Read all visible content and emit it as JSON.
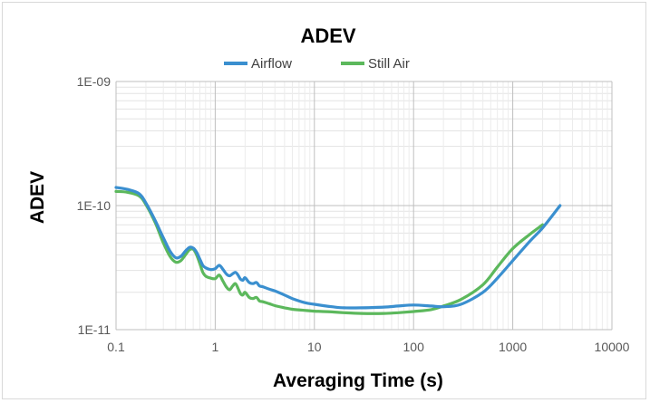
{
  "chart_data": {
    "type": "line",
    "title": "ADEV",
    "xlabel": "Averaging Time (s)",
    "ylabel": "ADEV",
    "xscale": "log",
    "yscale": "log",
    "xlim": [
      0.1,
      10000
    ],
    "ylim": [
      1e-11,
      1e-09
    ],
    "x_ticks": [
      "0.1",
      "1",
      "10",
      "100",
      "1000",
      "10000"
    ],
    "y_ticks": [
      "1E-11",
      "1E-10",
      "1E-09"
    ],
    "grid": true,
    "legend": "top-center",
    "series": [
      {
        "name": "Airflow",
        "color": "#3a8fcf",
        "x": [
          0.1,
          0.13,
          0.17,
          0.2,
          0.25,
          0.3,
          0.35,
          0.4,
          0.45,
          0.5,
          0.55,
          0.6,
          0.65,
          0.7,
          0.75,
          0.8,
          0.9,
          1.0,
          1.1,
          1.2,
          1.3,
          1.4,
          1.5,
          1.6,
          1.7,
          1.8,
          1.9,
          2.0,
          2.2,
          2.4,
          2.6,
          2.8,
          3.0,
          3.5,
          4.0,
          5,
          6,
          8,
          10,
          15,
          20,
          30,
          50,
          70,
          100,
          150,
          200,
          300,
          500,
          700,
          1000,
          1500,
          2000,
          3000
        ],
        "y": [
          1.4e-10,
          1.35e-10,
          1.25e-10,
          1.05e-10,
          7.5e-11,
          5.5e-11,
          4.3e-11,
          3.8e-11,
          3.9e-11,
          4.3e-11,
          4.6e-11,
          4.55e-11,
          4.2e-11,
          3.7e-11,
          3.3e-11,
          3.15e-11,
          3.05e-11,
          3.1e-11,
          3.3e-11,
          3.05e-11,
          2.8e-11,
          2.72e-11,
          2.82e-11,
          2.9e-11,
          2.75e-11,
          2.55e-11,
          2.5e-11,
          2.62e-11,
          2.4e-11,
          2.35e-11,
          2.4e-11,
          2.25e-11,
          2.22e-11,
          2.12e-11,
          2.05e-11,
          1.9e-11,
          1.78e-11,
          1.65e-11,
          1.6e-11,
          1.53e-11,
          1.5e-11,
          1.5e-11,
          1.52e-11,
          1.55e-11,
          1.58e-11,
          1.55e-11,
          1.53e-11,
          1.6e-11,
          2e-11,
          2.6e-11,
          3.6e-11,
          5.2e-11,
          6.6e-11,
          1e-10
        ]
      },
      {
        "name": "Still Air",
        "color": "#5cb85c",
        "x": [
          0.1,
          0.13,
          0.17,
          0.2,
          0.25,
          0.3,
          0.35,
          0.4,
          0.45,
          0.5,
          0.55,
          0.6,
          0.65,
          0.7,
          0.75,
          0.8,
          0.9,
          1.0,
          1.1,
          1.2,
          1.3,
          1.4,
          1.5,
          1.6,
          1.7,
          1.8,
          1.9,
          2.0,
          2.2,
          2.4,
          2.6,
          2.8,
          3.0,
          3.5,
          4.0,
          5,
          6,
          8,
          10,
          15,
          20,
          30,
          50,
          70,
          100,
          150,
          200,
          300,
          500,
          700,
          1000,
          1500,
          2000
        ],
        "y": [
          1.3e-10,
          1.28e-10,
          1.2e-10,
          1.02e-10,
          7.2e-11,
          5e-11,
          3.9e-11,
          3.5e-11,
          3.6e-11,
          4e-11,
          4.4e-11,
          4.45e-11,
          4e-11,
          3.4e-11,
          2.9e-11,
          2.7e-11,
          2.6e-11,
          2.58e-11,
          2.75e-11,
          2.45e-11,
          2.2e-11,
          2.1e-11,
          2.25e-11,
          2.35e-11,
          2.15e-11,
          1.95e-11,
          1.9e-11,
          2e-11,
          1.82e-11,
          1.78e-11,
          1.82e-11,
          1.7e-11,
          1.68e-11,
          1.62e-11,
          1.56e-11,
          1.5e-11,
          1.46e-11,
          1.43e-11,
          1.41e-11,
          1.39e-11,
          1.37e-11,
          1.35e-11,
          1.35e-11,
          1.37e-11,
          1.4e-11,
          1.45e-11,
          1.55e-11,
          1.75e-11,
          2.3e-11,
          3.2e-11,
          4.5e-11,
          5.9e-11,
          7e-11
        ]
      }
    ]
  }
}
